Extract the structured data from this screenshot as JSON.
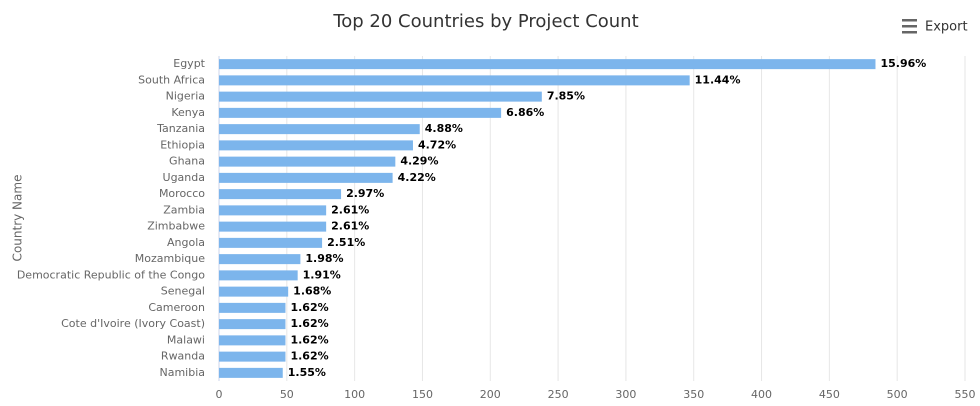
{
  "export_button": {
    "label": "Export"
  },
  "chart_data": {
    "type": "bar",
    "title": "Top 20 Countries by Project Count",
    "y_label": "Country Name",
    "categories": [
      "Egypt",
      "South Africa",
      "Nigeria",
      "Kenya",
      "Tanzania",
      "Ethiopia",
      "Ghana",
      "Uganda",
      "Morocco",
      "Zambia",
      "Zimbabwe",
      "Angola",
      "Mozambique",
      "Democratic Republic of the Congo",
      "Senegal",
      "Cameroon",
      "Cote d'Ivoire (Ivory Coast)",
      "Malawi",
      "Rwanda",
      "Namibia"
    ],
    "values": [
      484,
      347,
      238,
      208,
      148,
      143,
      130,
      128,
      90,
      79,
      79,
      76,
      60,
      58,
      51,
      49,
      49,
      49,
      49,
      47
    ],
    "value_labels": [
      "15.96%",
      "11.44%",
      "7.85%",
      "6.86%",
      "4.88%",
      "4.72%",
      "4.29%",
      "4.22%",
      "2.97%",
      "2.61%",
      "2.61%",
      "2.51%",
      "1.98%",
      "1.91%",
      "1.68%",
      "1.62%",
      "1.62%",
      "1.62%",
      "1.62%",
      "1.55%"
    ],
    "color": "#7cb5ec",
    "xlim": [
      0,
      550
    ],
    "xticks": [
      0,
      50,
      100,
      150,
      200,
      250,
      300,
      350,
      400,
      450,
      500,
      550
    ],
    "grid": true
  }
}
